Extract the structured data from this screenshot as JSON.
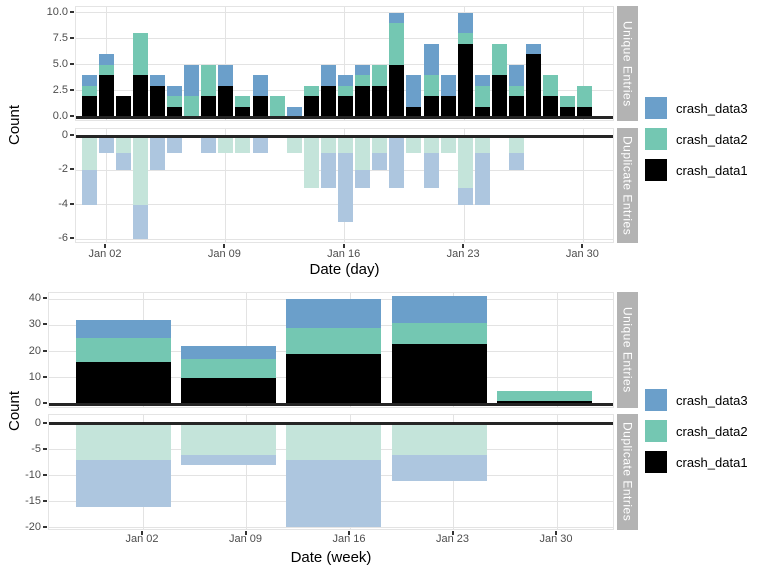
{
  "figure": {
    "background": "#ffffff"
  },
  "chart_data": [
    {
      "type": "bar",
      "stacked": true,
      "title": "",
      "xlabel": "Date (day)",
      "ylabel": "Count",
      "grid": true,
      "legend": {
        "position": "right",
        "entries": [
          {
            "label": "crash_data3",
            "color": "#6b9fca"
          },
          {
            "label": "crash_data2",
            "color": "#74c7b2"
          },
          {
            "label": "crash_data1",
            "color": "#000000"
          }
        ]
      },
      "x": [
        "Jan 01",
        "Jan 02",
        "Jan 03",
        "Jan 04",
        "Jan 05",
        "Jan 06",
        "Jan 07",
        "Jan 08",
        "Jan 09",
        "Jan 10",
        "Jan 11",
        "Jan 12",
        "Jan 13",
        "Jan 14",
        "Jan 15",
        "Jan 16",
        "Jan 17",
        "Jan 18",
        "Jan 19",
        "Jan 20",
        "Jan 21",
        "Jan 22",
        "Jan 23",
        "Jan 24",
        "Jan 25",
        "Jan 26",
        "Jan 27",
        "Jan 28",
        "Jan 29",
        "Jan 30",
        "Jan 31"
      ],
      "x_tick_labels": [
        "Jan 02",
        "Jan 09",
        "Jan 16",
        "Jan 23",
        "Jan 30"
      ],
      "facets": [
        {
          "label": "Unique Entries",
          "ylim": [
            0,
            10
          ],
          "yticks": [
            {
              "value": 0,
              "label": "0.0"
            },
            {
              "value": 2.5,
              "label": "2.5"
            },
            {
              "value": 5,
              "label": "5.0"
            },
            {
              "value": 7.5,
              "label": "7.5"
            },
            {
              "value": 10,
              "label": "10.0"
            }
          ],
          "series": [
            {
              "name": "crash_data1",
              "color": "#000000",
              "values": [
                2,
                4,
                2,
                4,
                3,
                1,
                0,
                2,
                3,
                1,
                2,
                0,
                0,
                2,
                3,
                2,
                3,
                3,
                5,
                1,
                2,
                2,
                7,
                1,
                4,
                2,
                6,
                2,
                1,
                1,
                0
              ]
            },
            {
              "name": "crash_data2",
              "color": "#74c7b2",
              "values": [
                1,
                1,
                0,
                4,
                0,
                1,
                2,
                3,
                0,
                1,
                0,
                2,
                0,
                1,
                0,
                1,
                1,
                2,
                4,
                0,
                2,
                0,
                1,
                2,
                3,
                1,
                0,
                2,
                1,
                2,
                0
              ]
            },
            {
              "name": "crash_data3",
              "color": "#6b9fca",
              "values": [
                1,
                1,
                0,
                0,
                1,
                1,
                3,
                0,
                2,
                0,
                2,
                0,
                1,
                0,
                2,
                1,
                1,
                0,
                1,
                3,
                3,
                2,
                2,
                1,
                0,
                2,
                1,
                0,
                0,
                0,
                0
              ]
            }
          ]
        },
        {
          "label": "Duplicate Entries",
          "ylim": [
            -6,
            0
          ],
          "yticks": [
            {
              "value": 0,
              "label": "0"
            },
            {
              "value": -2,
              "label": "-2"
            },
            {
              "value": -4,
              "label": "-4"
            },
            {
              "value": -6,
              "label": "-6"
            }
          ],
          "series": [
            {
              "name": "crash_data2",
              "color": "#c4e4da",
              "values": [
                -2,
                0,
                -1,
                -4,
                0,
                0,
                0,
                0,
                -1,
                -1,
                0,
                0,
                -1,
                -3,
                -1,
                -1,
                -2,
                -1,
                0,
                -1,
                -1,
                -1,
                -3,
                -1,
                0,
                -1,
                0,
                0,
                0,
                0,
                0
              ]
            },
            {
              "name": "crash_data3",
              "color": "#adc6df",
              "values": [
                -2,
                -1,
                -1,
                -2,
                -2,
                -1,
                0,
                -1,
                0,
                0,
                -1,
                0,
                0,
                0,
                -2,
                -4,
                -1,
                -1,
                -3,
                0,
                -2,
                0,
                -1,
                -3,
                0,
                -1,
                0,
                0,
                0,
                0,
                0
              ]
            }
          ]
        }
      ]
    },
    {
      "type": "bar",
      "stacked": true,
      "title": "",
      "xlabel": "Date (week)",
      "ylabel": "Count",
      "grid": true,
      "legend": {
        "position": "right",
        "entries": [
          {
            "label": "crash_data3",
            "color": "#6b9fca"
          },
          {
            "label": "crash_data2",
            "color": "#74c7b2"
          },
          {
            "label": "crash_data1",
            "color": "#000000"
          }
        ]
      },
      "x": [
        "Jan 02",
        "Jan 09",
        "Jan 16",
        "Jan 23",
        "Jan 30"
      ],
      "x_tick_labels": [
        "Jan 02",
        "Jan 09",
        "Jan 16",
        "Jan 23",
        "Jan 30"
      ],
      "facets": [
        {
          "label": "Unique Entries",
          "ylim": [
            0,
            41
          ],
          "yticks": [
            {
              "value": 0,
              "label": "0"
            },
            {
              "value": 10,
              "label": "10"
            },
            {
              "value": 20,
              "label": "20"
            },
            {
              "value": 30,
              "label": "30"
            },
            {
              "value": 40,
              "label": "40"
            }
          ],
          "series": [
            {
              "name": "crash_data1",
              "color": "#000000",
              "values": [
                16,
                10,
                19,
                23,
                1
              ]
            },
            {
              "name": "crash_data2",
              "color": "#74c7b2",
              "values": [
                9,
                7,
                10,
                8,
                4
              ]
            },
            {
              "name": "crash_data3",
              "color": "#6b9fca",
              "values": [
                7,
                5,
                11,
                10,
                0
              ]
            }
          ]
        },
        {
          "label": "Duplicate Entries",
          "ylim": [
            -20,
            0
          ],
          "yticks": [
            {
              "value": 0,
              "label": "0"
            },
            {
              "value": -5,
              "label": "-5"
            },
            {
              "value": -10,
              "label": "-10"
            },
            {
              "value": -15,
              "label": "-15"
            },
            {
              "value": -20,
              "label": "-20"
            }
          ],
          "series": [
            {
              "name": "crash_data2",
              "color": "#c4e4da",
              "values": [
                -7,
                -6,
                -7,
                -6,
                0
              ]
            },
            {
              "name": "crash_data3",
              "color": "#adc6df",
              "values": [
                -9,
                -2,
                -13,
                -5,
                0
              ]
            }
          ]
        }
      ]
    }
  ]
}
